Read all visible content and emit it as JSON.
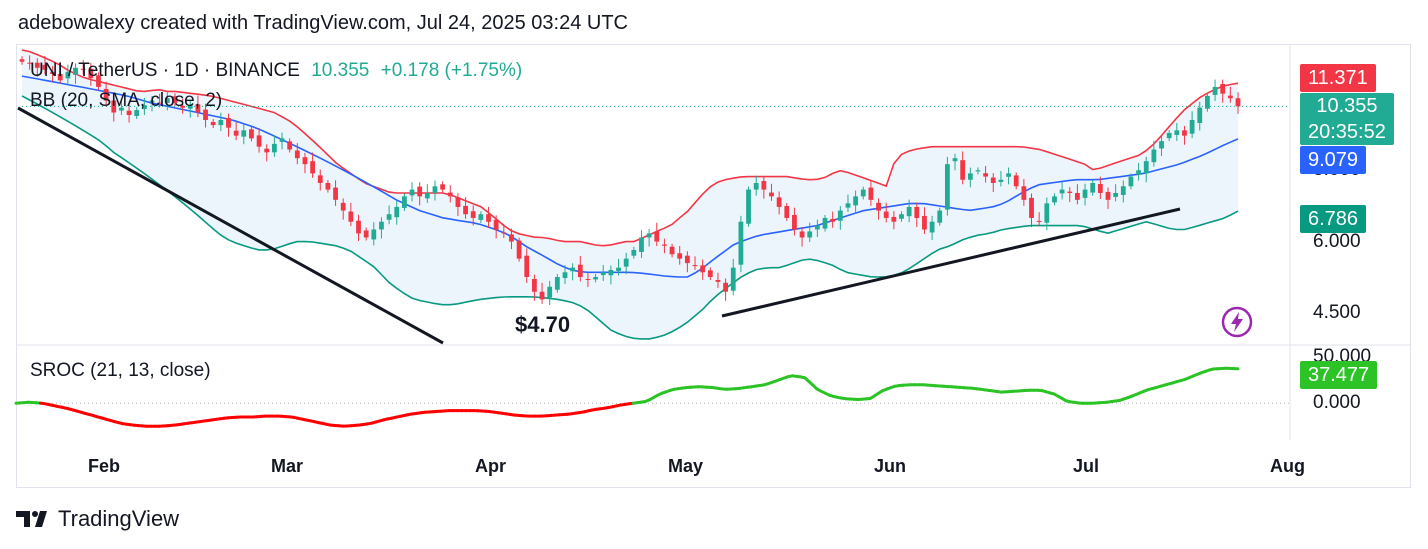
{
  "header": {
    "attribution": "adebowalexy created with TradingView.com, Jul 24, 2025 03:24 UTC"
  },
  "legend": {
    "symbol": "UNI / TetherUS · 1D · BINANCE",
    "last": "10.355",
    "change": "+0.178 (+1.75%)",
    "bb_label": "BB (20, SMA, close, 2)",
    "sroc_label": "SROC (21, 13, close)"
  },
  "annotation": {
    "low_label": "$4.70"
  },
  "tags": {
    "bb_upper": "11.371",
    "last_price": "10.355",
    "countdown": "20:35:52",
    "bb_basis": "9.079",
    "bb_lower": "6.786",
    "sroc_value": "37.477"
  },
  "colors": {
    "up": "#22ab94",
    "down": "#f23645",
    "upper_band": "#f23645",
    "basis": "#2962ff",
    "lower_band": "#089981",
    "band_fill": "#eaf3fb",
    "sroc_pos": "#2bc325",
    "sroc_neg": "#ff0000",
    "trendline": "#131722"
  },
  "icons": {
    "alert": "lightning-bolt-icon",
    "logo": "tradingview-logo-icon"
  },
  "chart_data": [
    {
      "type": "candlestick",
      "title": "UNI / TetherUS · 1D · BINANCE",
      "y_ticks": [
        "10.000",
        "8.000",
        "6.000",
        "4.500"
      ],
      "x_ticks": [
        "Feb",
        "Mar",
        "Apr",
        "May",
        "Jun",
        "Jul",
        "Aug"
      ],
      "yscale": "log",
      "ylim": [
        4.0,
        13.0
      ],
      "close_series": [
        12.4,
        12.3,
        12.1,
        12.0,
        11.8,
        11.5,
        11.9,
        12.1,
        12.0,
        11.6,
        11.2,
        10.6,
        10.1,
        10.3,
        10.0,
        10.2,
        10.4,
        10.6,
        10.5,
        10.7,
        10.5,
        10.3,
        10.4,
        10.1,
        9.8,
        9.6,
        9.8,
        9.5,
        9.2,
        9.4,
        9.1,
        8.8,
        8.6,
        8.9,
        9.1,
        8.7,
        8.4,
        8.2,
        7.9,
        7.6,
        7.4,
        7.1,
        6.8,
        6.5,
        6.2,
        6.1,
        6.3,
        6.5,
        6.7,
        6.9,
        7.2,
        7.4,
        7.2,
        7.3,
        7.5,
        7.4,
        7.2,
        6.9,
        6.7,
        6.6,
        6.7,
        6.5,
        6.3,
        6.2,
        6.0,
        5.6,
        5.2,
        4.9,
        4.75,
        5.0,
        5.2,
        5.3,
        5.4,
        5.2,
        5.15,
        5.2,
        5.3,
        5.35,
        5.4,
        5.6,
        5.8,
        6.1,
        6.2,
        6.0,
        5.9,
        5.7,
        5.6,
        5.5,
        5.45,
        5.3,
        5.2,
        5.1,
        4.9,
        5.4,
        6.5,
        7.4,
        7.6,
        7.4,
        7.2,
        6.9,
        6.6,
        6.3,
        6.1,
        6.25,
        6.4,
        6.6,
        6.5,
        6.8,
        7.0,
        7.2,
        7.4,
        7.1,
        6.8,
        6.6,
        6.5,
        6.7,
        6.9,
        6.6,
        6.3,
        6.5,
        6.8,
        8.2,
        8.4,
        7.7,
        7.9,
        8.0,
        7.8,
        7.6,
        7.7,
        7.9,
        7.5,
        7.1,
        6.6,
        6.5,
        7.0,
        7.2,
        7.4,
        7.3,
        7.1,
        7.4,
        7.6,
        7.3,
        7.1,
        7.3,
        7.5,
        7.8,
        8.0,
        8.3,
        8.7,
        9.0,
        9.3,
        9.4,
        9.2,
        9.8,
        10.3,
        10.8,
        11.2,
        10.9,
        10.7,
        10.355
      ],
      "bb_upper": [
        13.0,
        12.9,
        12.7,
        12.5,
        12.3,
        12.0,
        11.8,
        11.6,
        11.5,
        11.4,
        11.3,
        11.2,
        11.1,
        11.0,
        11.0,
        11.1,
        11.0,
        11.0,
        10.95,
        10.9,
        10.85,
        10.8,
        10.7,
        10.6,
        10.5,
        10.4,
        10.3,
        10.2,
        10.1,
        9.9,
        9.7,
        9.4,
        9.1,
        8.8,
        8.5,
        8.2,
        8.0,
        7.8,
        7.6,
        7.5,
        7.4,
        7.3,
        7.3,
        7.3,
        7.3,
        7.3,
        7.3,
        7.3,
        7.2,
        7.1,
        7.0,
        6.9,
        6.7,
        6.5,
        6.3,
        6.2,
        6.15,
        6.1,
        6.1,
        6.05,
        6.0,
        6.0,
        6.0,
        5.95,
        5.9,
        5.9,
        5.95,
        6.0,
        6.0,
        6.1,
        6.2,
        6.3,
        6.4,
        6.6,
        6.8,
        7.1,
        7.4,
        7.6,
        7.7,
        7.75,
        7.8,
        7.8,
        7.8,
        7.8,
        7.8,
        7.8,
        7.75,
        7.7,
        7.7,
        7.75,
        7.9,
        8.0,
        7.9,
        7.8,
        7.7,
        7.6,
        7.5,
        8.4,
        8.6,
        8.7,
        8.75,
        8.8,
        8.8,
        8.8,
        8.8,
        8.8,
        8.8,
        8.8,
        8.8,
        8.8,
        8.8,
        8.8,
        8.75,
        8.7,
        8.6,
        8.5,
        8.4,
        8.3,
        8.2,
        8.0,
        8.1,
        8.2,
        8.3,
        8.4,
        8.5,
        8.7,
        9.0,
        9.4,
        9.8,
        10.2,
        10.5,
        10.8,
        11.0,
        11.2,
        11.3,
        11.371
      ],
      "bb_basis": [
        11.7,
        11.6,
        11.5,
        11.4,
        11.3,
        11.2,
        11.1,
        11.0,
        10.9,
        10.8,
        10.65,
        10.5,
        10.4,
        10.3,
        10.2,
        10.1,
        10.0,
        9.9,
        9.8,
        9.65,
        9.5,
        9.3,
        9.1,
        8.9,
        8.7,
        8.5,
        8.3,
        8.1,
        7.9,
        7.7,
        7.5,
        7.3,
        7.1,
        6.95,
        6.8,
        6.7,
        6.6,
        6.55,
        6.5,
        6.45,
        6.35,
        6.25,
        6.1,
        5.9,
        5.75,
        5.6,
        5.45,
        5.35,
        5.3,
        5.3,
        5.3,
        5.3,
        5.3,
        5.28,
        5.25,
        5.22,
        5.2,
        5.2,
        5.35,
        5.55,
        5.75,
        5.95,
        6.05,
        6.15,
        6.2,
        6.25,
        6.3,
        6.35,
        6.4,
        6.5,
        6.6,
        6.7,
        6.8,
        6.85,
        6.9,
        6.95,
        7.0,
        7.0,
        6.95,
        6.9,
        6.85,
        6.8,
        6.85,
        6.9,
        7.0,
        7.2,
        7.4,
        7.55,
        7.6,
        7.65,
        7.7,
        7.7,
        7.7,
        7.75,
        7.8,
        7.85,
        7.9,
        8.0,
        8.1,
        8.2,
        8.35,
        8.5,
        8.7,
        8.9,
        9.079
      ],
      "bb_lower": [
        10.8,
        10.5,
        10.2,
        9.9,
        9.6,
        9.3,
        9.0,
        8.6,
        8.3,
        8.0,
        7.7,
        7.4,
        7.1,
        6.8,
        6.5,
        6.2,
        6.0,
        5.9,
        5.8,
        5.8,
        5.9,
        6.0,
        6.0,
        5.95,
        5.9,
        5.8,
        5.6,
        5.4,
        5.1,
        4.9,
        4.75,
        4.7,
        4.65,
        4.65,
        4.7,
        4.75,
        4.78,
        4.8,
        4.8,
        4.8,
        4.78,
        4.75,
        4.7,
        4.6,
        4.4,
        4.2,
        4.1,
        4.05,
        4.05,
        4.1,
        4.2,
        4.35,
        4.55,
        4.8,
        5.0,
        5.2,
        5.35,
        5.4,
        5.4,
        5.5,
        5.6,
        5.55,
        5.45,
        5.3,
        5.25,
        5.2,
        5.2,
        5.25,
        5.4,
        5.6,
        5.8,
        5.9,
        6.05,
        6.15,
        6.2,
        6.3,
        6.35,
        6.4,
        6.4,
        6.4,
        6.4,
        6.4,
        6.3,
        6.2,
        6.3,
        6.4,
        6.5,
        6.4,
        6.3,
        6.3,
        6.4,
        6.5,
        6.6,
        6.786
      ]
    },
    {
      "type": "line",
      "title": "SROC (21, 13, close)",
      "y_ticks": [
        "50.000",
        "0.000"
      ],
      "ylim": [
        -40,
        60
      ],
      "values": [
        0,
        1,
        0,
        -3,
        -6,
        -10,
        -14,
        -18,
        -22,
        -24,
        -25,
        -25,
        -24,
        -22,
        -20,
        -18,
        -16,
        -15,
        -15,
        -14,
        -14,
        -15,
        -18,
        -21,
        -24,
        -25,
        -24,
        -22,
        -18,
        -15,
        -12,
        -10,
        -9,
        -8,
        -8,
        -8,
        -9,
        -11,
        -13,
        -14,
        -14,
        -13,
        -12,
        -10,
        -7,
        -5,
        -2,
        0,
        2,
        10,
        15,
        17,
        18,
        17,
        15,
        16,
        18,
        20,
        25,
        30,
        28,
        15,
        8,
        5,
        4,
        5,
        14,
        19,
        20,
        20,
        19,
        18,
        17,
        16,
        14,
        12,
        13,
        14,
        14,
        10,
        2,
        0,
        0,
        1,
        3,
        8,
        14,
        18,
        22,
        26,
        32,
        37,
        38,
        37.477
      ]
    }
  ]
}
